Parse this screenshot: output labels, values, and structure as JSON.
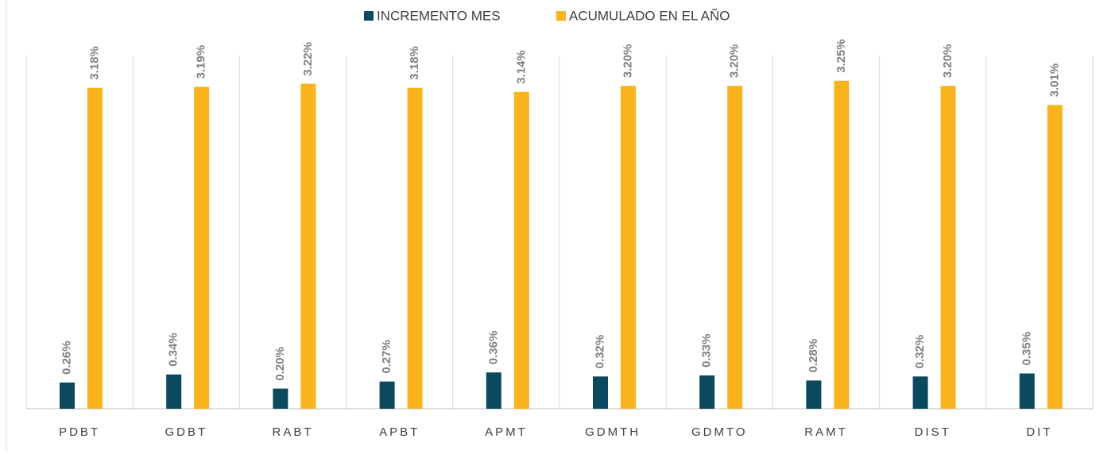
{
  "chart_data": {
    "type": "bar",
    "categories": [
      "PDBT",
      "GDBT",
      "RABT",
      "APBT",
      "APMT",
      "GDMTH",
      "GDMTO",
      "RAMT",
      "DIST",
      "DIT"
    ],
    "series": [
      {
        "name": "INCREMENTO MES",
        "color": "#0b4a5e",
        "values": [
          0.26,
          0.34,
          0.2,
          0.27,
          0.36,
          0.32,
          0.33,
          0.28,
          0.32,
          0.35
        ],
        "value_labels": [
          "0.26%",
          "0.34%",
          "0.20%",
          "0.27%",
          "0.36%",
          "0.32%",
          "0.33%",
          "0.28%",
          "0.32%",
          "0.35%"
        ]
      },
      {
        "name": "ACUMULADO EN EL AÑO",
        "color": "#f9b31b",
        "values": [
          3.18,
          3.19,
          3.22,
          3.18,
          3.14,
          3.2,
          3.2,
          3.25,
          3.2,
          3.01
        ],
        "value_labels": [
          "3.18%",
          "3.19%",
          "3.22%",
          "3.18%",
          "3.14%",
          "3.20%",
          "3.20%",
          "3.25%",
          "3.20%",
          "3.01%"
        ]
      }
    ],
    "ylim": [
      0,
      3.5
    ]
  }
}
